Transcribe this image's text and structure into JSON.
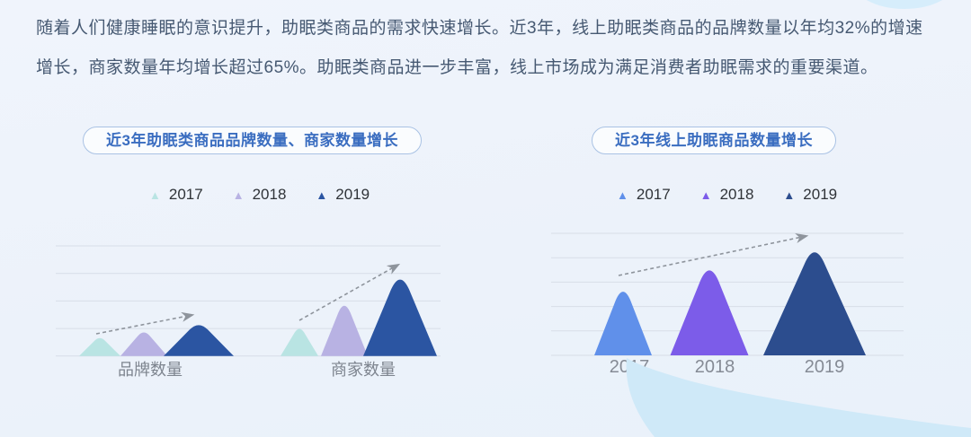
{
  "page": {
    "background_color": "#ecf2fa",
    "intro": {
      "line1": "随着人们健康睡眠的意识提升，助眠类商品的需求快速增长。近3年，线上助眠类商品的品牌数量以年均32%的增速",
      "line2": "增长，商家数量年均增长超过65%。助眠类商品进一步丰富，线上市场成为满足消费者助眠需求的重要渠道。"
    }
  },
  "colors": {
    "title_blue": "#3a6dc0",
    "pill_border": "#a9c2e4",
    "gridline": "#d7dde7",
    "arrow_gray": "#8e949c",
    "category_label_gray": "#7d848e",
    "year_label_gray": "#858b95",
    "legend_text": "#2f3338",
    "intro_text": "#465972",
    "blob_blue": "#cfe9f8",
    "ellipse_blue": "#d6edfb"
  },
  "chart_data": [
    {
      "type": "bar",
      "style": "triangle-pictorial",
      "title": "近3年助眠类商品品牌数量、商家数量增长",
      "categories": [
        "品牌数量",
        "商家数量"
      ],
      "series": [
        {
          "name": "2017",
          "color": "#b9e4e3",
          "values": [
            0.72,
            1.1
          ]
        },
        {
          "name": "2018",
          "color": "#b8b2e3",
          "values": [
            0.95,
            2.05
          ]
        },
        {
          "name": "2019",
          "color": "#2b55a2",
          "values": [
            1.25,
            3.1
          ]
        }
      ],
      "value_axis": {
        "numeric_labels_shown": false,
        "gridlines": 5,
        "ylim": [
          0,
          4
        ],
        "unit": "relative height in gridline intervals (no numbers printed in image)"
      },
      "legend_position": "top",
      "annotations": [
        "dashed growth arrow over 品牌数量 group from 2017 peak to 2019 peak",
        "dashed growth arrow over 商家数量 group from 2017 peak to 2019 peak"
      ]
    },
    {
      "type": "bar",
      "style": "triangle-pictorial",
      "title": "近3年线上助眠商品数量增长",
      "categories": [
        "2017",
        "2018",
        "2019"
      ],
      "series": [
        {
          "name": "2017",
          "color": "#6090ea",
          "values": [
            2.93
          ]
        },
        {
          "name": "2018",
          "color": "#7c5ce9",
          "values": [
            3.86
          ]
        },
        {
          "name": "2019",
          "color": "#2c4d8e",
          "values": [
            4.56
          ]
        }
      ],
      "value_axis": {
        "numeric_labels_shown": false,
        "gridlines": 6,
        "ylim": [
          0,
          5
        ],
        "unit": "relative height in gridline intervals (no numbers printed in image)"
      },
      "legend_position": "top",
      "annotations": [
        "dashed growth arrow from 2017 peak to above 2019 peak"
      ]
    }
  ]
}
